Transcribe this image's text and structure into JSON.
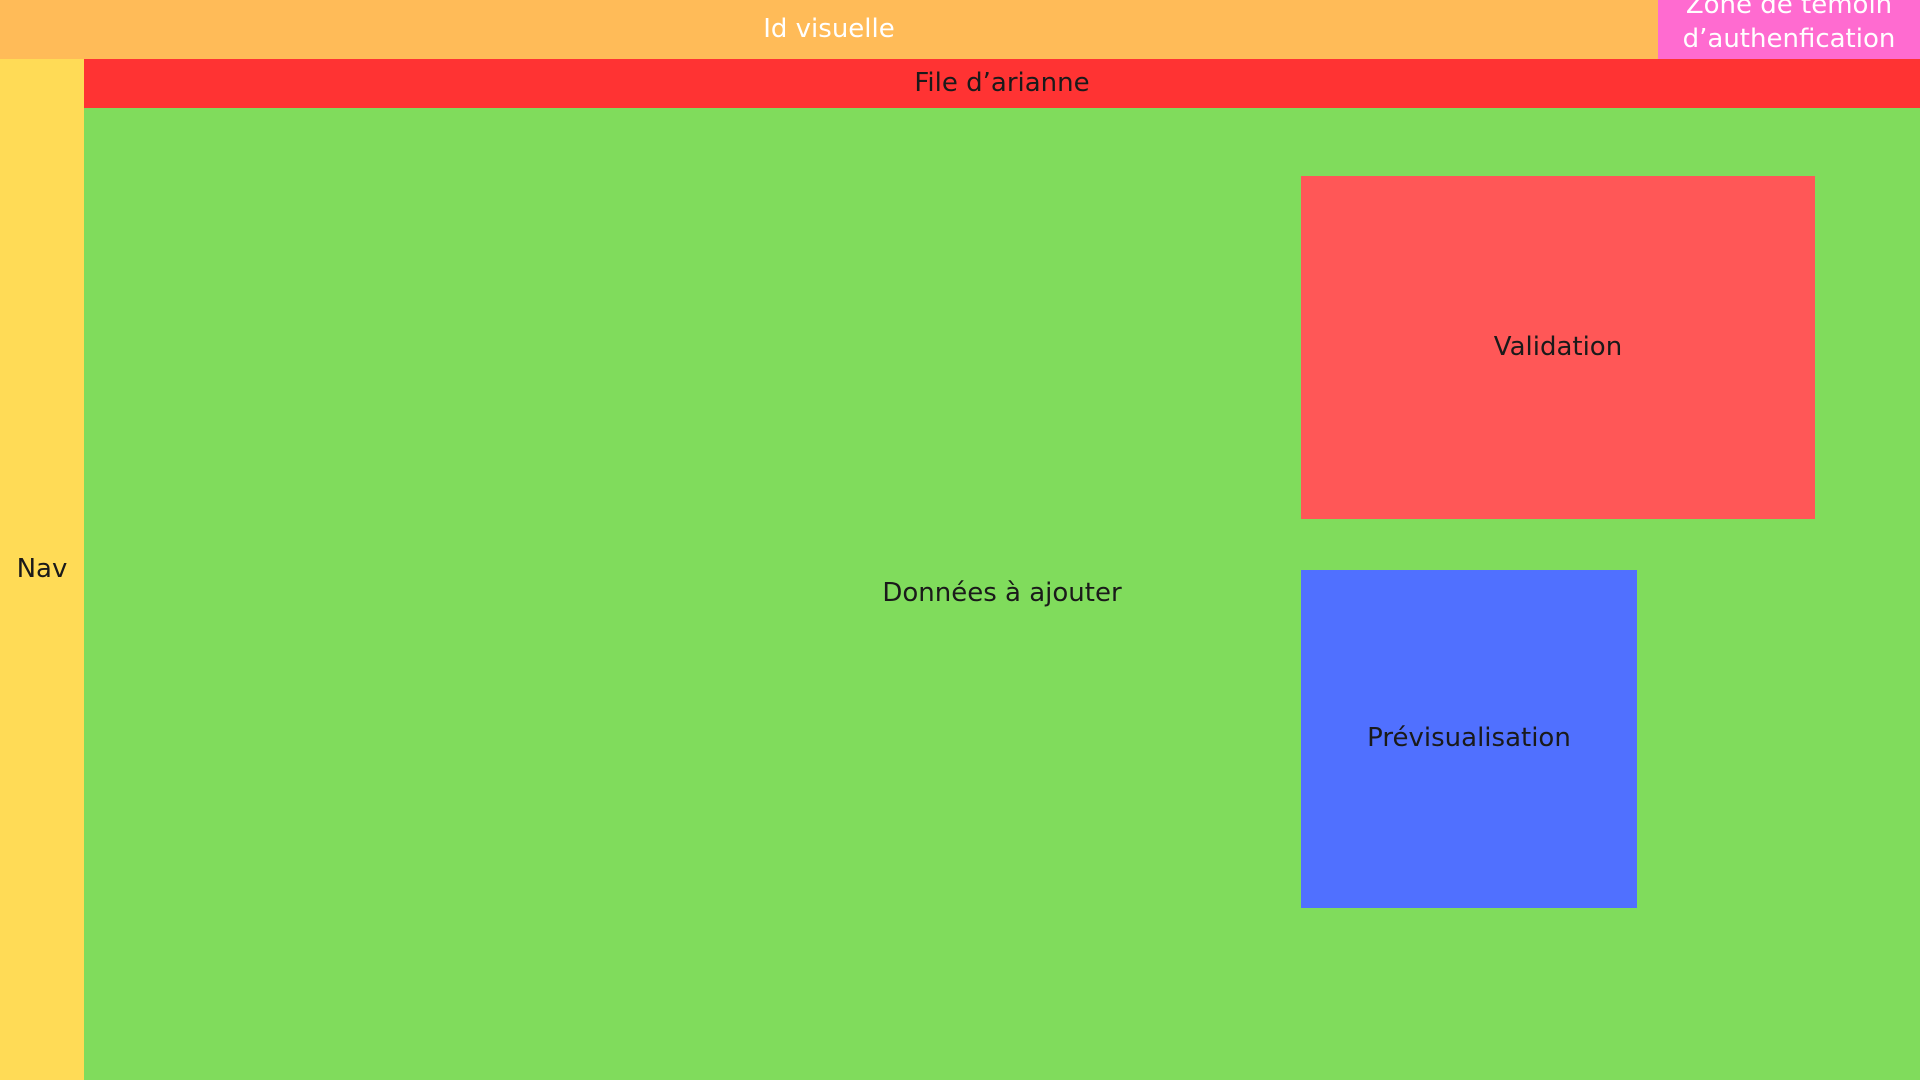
{
  "header": {
    "brand_label": "Id visuelle",
    "auth_label": "Zone de témoin d’authenfication"
  },
  "breadcrumb": {
    "label": "File d’arianne"
  },
  "nav": {
    "label": "Nav"
  },
  "main": {
    "content_label": "Données à ajouter",
    "validation_label": "Validation",
    "preview_label": "Prévisualisation"
  },
  "colors": {
    "header": "#ffbb58",
    "auth": "#ff6bd0",
    "breadcrumb": "#ff3333",
    "nav": "#ffdb56",
    "content": "#80dc5c",
    "validation": "#ff5757",
    "preview": "#5070ff"
  }
}
